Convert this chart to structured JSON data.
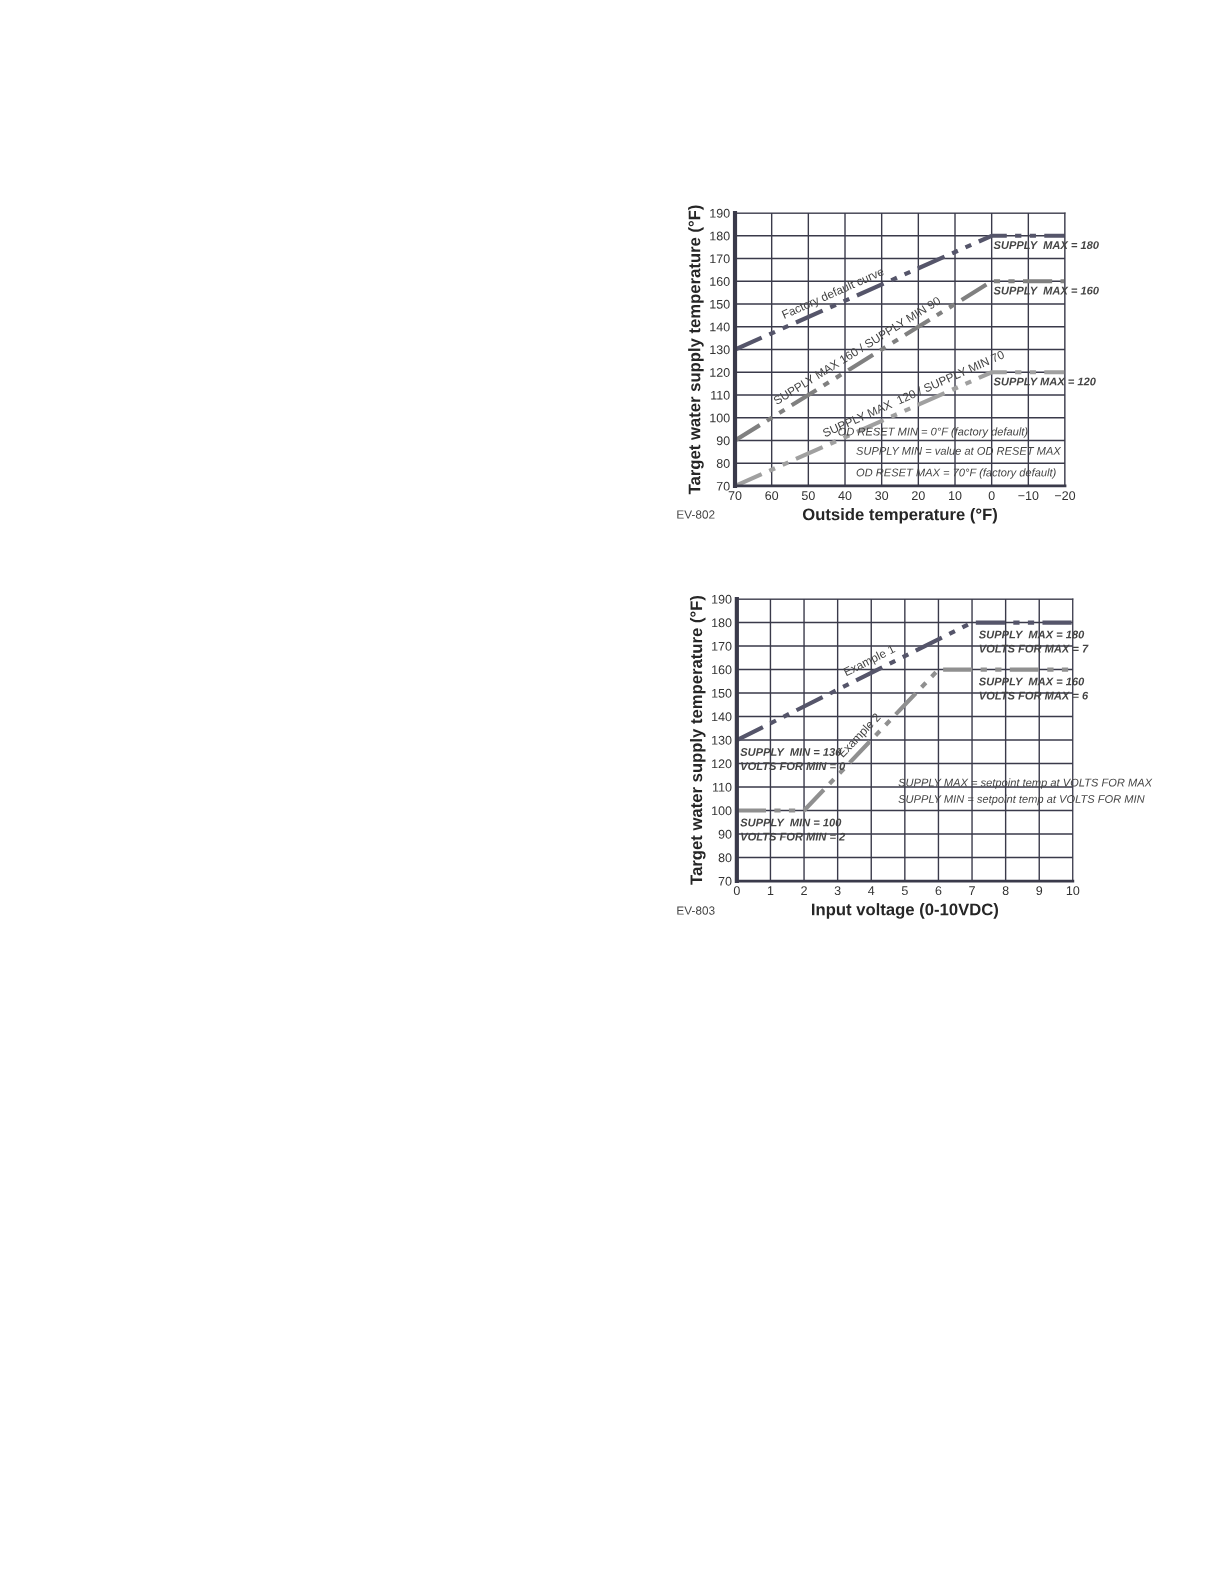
{
  "chart_data": [
    {
      "type": "line",
      "xlabel": "Outside temperature (°F)",
      "ylabel": "Target water supply temperature (°F)",
      "x": [
        70,
        0,
        -20
      ],
      "xlim": [
        70,
        -20
      ],
      "xticks": [
        70,
        60,
        50,
        40,
        30,
        20,
        10,
        0,
        {
          "value": -10,
          "label": "−10"
        },
        {
          "value": -20,
          "label": "−20"
        }
      ],
      "ylim": [
        70,
        190
      ],
      "yticks": [
        70,
        80,
        90,
        100,
        110,
        120,
        130,
        140,
        150,
        160,
        170,
        180,
        190
      ],
      "grid": true,
      "line_style": "dashed",
      "series": [
        {
          "color": "#55556a",
          "values": [
            130,
            180,
            180
          ]
        },
        {
          "color": "#808080",
          "values": [
            90,
            160,
            160
          ]
        },
        {
          "color": "#a0a0a0",
          "values": [
            70,
            120,
            120
          ]
        }
      ],
      "annotations": [
        {
          "text": "Factory default curve",
          "x": 42,
          "y": 150
        },
        {
          "text": "SUPPLY MAX 160 / SUPPLY MIN 90",
          "x": 35,
          "y": 125
        },
        {
          "text": "SUPPLY MAX  120 / SUPPLY MIN 70",
          "x": 20,
          "y": 105.7
        },
        "SUPPLY  MAX = 180",
        "SUPPLY  MAX = 160",
        "SUPPLY MAX = 120",
        "OD RESET MIN = 0°F (factory default)",
        "SUPPLY MIN = value at OD RESET MAX",
        "OD RESET MAX = 70°F (factory default)",
        "EV-802"
      ]
    },
    {
      "type": "line",
      "xlabel": "Input voltage (0-10VDC)",
      "ylabel": "Target water supply temperature (°F)",
      "xlim": [
        0,
        10
      ],
      "xticks": [
        0,
        1,
        2,
        3,
        4,
        5,
        6,
        7,
        8,
        9,
        10
      ],
      "ylim": [
        70,
        190
      ],
      "yticks": [
        70,
        80,
        90,
        100,
        110,
        120,
        130,
        140,
        150,
        160,
        170,
        180,
        190
      ],
      "grid": true,
      "line_style": "dashed",
      "series": [
        {
          "color": "#55556a",
          "x": [
            0,
            7,
            10
          ],
          "values": [
            130,
            180,
            180
          ]
        },
        {
          "color": "#909090",
          "x": [
            0,
            2,
            6,
            10
          ],
          "values": [
            100,
            100,
            160,
            160
          ]
        }
      ],
      "annotations": [
        {
          "text": "Example 1",
          "x": 4.1,
          "y": 159.3
        },
        {
          "text": "Example 2",
          "x": 3.9,
          "y": 128.5
        },
        "SUPPLY  MAX = 180",
        "VOLTS FOR MAX = 7",
        "SUPPLY  MAX = 160",
        "VOLTS FOR MAX = 6",
        "SUPPLY  MIN = 130",
        "VOLTS FOR MIN = 0",
        "SUPPLY  MIN = 100",
        "VOLTS FOR MIN = 2",
        "SUPPLY MAX = setpoint temp at VOLTS FOR MAX",
        "SUPPLY MIN = setpoint temp at VOLTS FOR MIN",
        "EV-803"
      ]
    }
  ]
}
